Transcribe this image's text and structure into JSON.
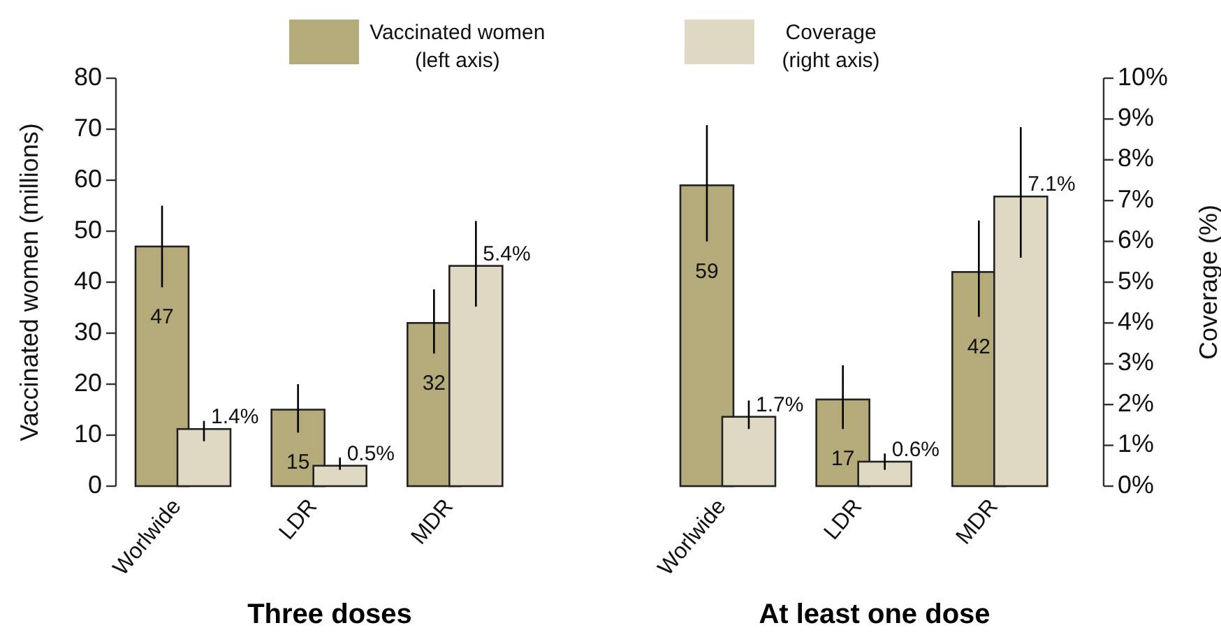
{
  "chart_data": [
    {
      "type": "bar",
      "title": "Three doses",
      "categories": [
        "Worlwide",
        "LDR",
        "MDR"
      ],
      "ylabel": "Vaccinated women (millions)",
      "ylim": [
        0,
        80
      ],
      "yticks": [
        0,
        10,
        20,
        30,
        40,
        50,
        60,
        70,
        80
      ],
      "y2lim": [
        0,
        10
      ],
      "tick_labels": [
        "x",
        "y"
      ],
      "legend": "top",
      "grid": false,
      "series": [
        {
          "name": "Vaccinated women\n(left axis)",
          "color": "#b5aa79",
          "axis": "y",
          "values": [
            47,
            15,
            32
          ],
          "errors": [
            [
              39,
              55
            ],
            [
              10.5,
              20
            ],
            [
              26,
              38.6
            ]
          ],
          "value_labels": [
            "47",
            "15",
            "32"
          ]
        },
        {
          "name": "Coverage\n(right axis)",
          "color": "#dfd9c3",
          "axis": "y2",
          "values": [
            1.4,
            0.5,
            5.4
          ],
          "errors": [
            [
              1.1,
              1.6
            ],
            [
              0.4,
              0.7
            ],
            [
              4.4,
              6.5
            ]
          ],
          "value_labels": [
            "1.4%",
            "0.5%",
            "5.4%"
          ]
        }
      ]
    },
    {
      "type": "bar",
      "title": "At least one dose",
      "categories": [
        "Worlwide",
        "LDR",
        "MDR"
      ],
      "y2label": "Coverage (%)",
      "ylim": [
        0,
        80
      ],
      "y2lim": [
        0,
        10
      ],
      "y2ticks": [
        {
          "value": 0,
          "label": "0%"
        },
        {
          "value": 1,
          "label": "1%"
        },
        {
          "value": 2,
          "label": "2%"
        },
        {
          "value": 3,
          "label": "3%"
        },
        {
          "value": 4,
          "label": "4%"
        },
        {
          "value": 5,
          "label": "5%"
        },
        {
          "value": 6,
          "label": "6%"
        },
        {
          "value": 7,
          "label": "7%"
        },
        {
          "value": 8,
          "label": "8%"
        },
        {
          "value": 9,
          "label": "9%"
        },
        {
          "value": 10,
          "label": "10%"
        }
      ],
      "tick_labels": [
        "x",
        "y2"
      ],
      "grid": false,
      "series": [
        {
          "color": "#b5aa79",
          "axis": "y",
          "values": [
            59,
            17,
            42
          ],
          "errors": [
            [
              48,
              70.8
            ],
            [
              11.2,
              23.7
            ],
            [
              33.2,
              52.1
            ]
          ],
          "value_labels": [
            "59",
            "17",
            "42"
          ]
        },
        {
          "color": "#dfd9c3",
          "axis": "y2",
          "values": [
            1.7,
            0.6,
            7.1
          ],
          "errors": [
            [
              1.4,
              2.1
            ],
            [
              0.4,
              0.8
            ],
            [
              5.6,
              8.8
            ]
          ],
          "value_labels": [
            "1.7%",
            "0.6%",
            "7.1%"
          ]
        }
      ]
    }
  ]
}
